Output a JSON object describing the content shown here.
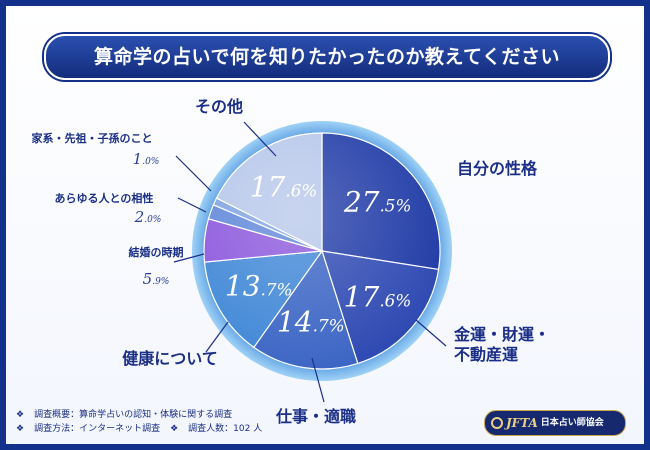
{
  "title": "算命学の占いで何を知りたかったのか教えてください",
  "chart_data": {
    "type": "pie",
    "title": "算命学の占いで何を知りたかったのか教えてください",
    "unit": "%",
    "slices": [
      {
        "label": "自分の性格",
        "value": 27.5,
        "color": "#1f3aa6"
      },
      {
        "label": "金運・財運・不動産運",
        "value": 17.6,
        "color": "#2d48b2"
      },
      {
        "label": "仕事・適職",
        "value": 14.7,
        "color": "#3a64c4"
      },
      {
        "label": "健康について",
        "value": 13.7,
        "color": "#3e86d6"
      },
      {
        "label": "結婚の時期",
        "value": 5.9,
        "color": "#8a55dc"
      },
      {
        "label": "あらゆる人との相性",
        "value": 2.0,
        "color": "#5e86d8"
      },
      {
        "label": "家系・先祖・子孫のこと",
        "value": 1.0,
        "color": "#7ea2e2"
      },
      {
        "label": "その他",
        "value": 17.6,
        "color": "#b6c6ea"
      }
    ]
  },
  "footer": {
    "line1": "調査概要：算命学占いの認知・体験に関する調査",
    "line2a": "調査方法：インターネット調査",
    "line2b": "調査人数：102 人"
  },
  "logo": {
    "abbr": "JFTA",
    "name": "日本占い師協会"
  }
}
